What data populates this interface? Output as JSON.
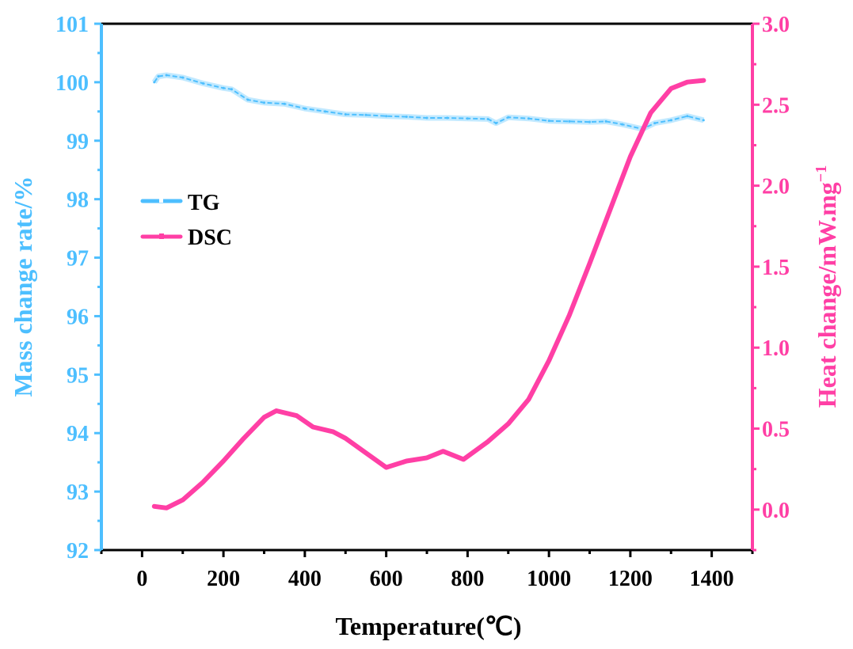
{
  "chart_data": {
    "type": "line",
    "title": "",
    "xlabel": "Temperature(℃)",
    "ylabel": "Mass change rate/%",
    "y2label": "Heat change/mW.mg",
    "y2label_sup": "−1",
    "xlim": [
      -100,
      1500
    ],
    "ylim": [
      92,
      101
    ],
    "y2lim": [
      -0.25,
      3.0
    ],
    "xticks": [
      0,
      200,
      400,
      600,
      800,
      1000,
      1200,
      1400
    ],
    "yticks": [
      92,
      93,
      94,
      95,
      96,
      97,
      98,
      99,
      100,
      101
    ],
    "y2ticks": [
      "0.0",
      "0.5",
      "1.0",
      "1.5",
      "2.0",
      "2.5",
      "3.0"
    ],
    "grid": false,
    "legend_position": "left-upper",
    "colors": {
      "TG": "#4dbfff",
      "DSC": "#ff3fa5",
      "frame": "#000000"
    },
    "series": [
      {
        "name": "TG",
        "axis": "left",
        "x": [
          30,
          40,
          60,
          100,
          150,
          200,
          220,
          260,
          300,
          350,
          400,
          450,
          500,
          550,
          600,
          650,
          700,
          750,
          800,
          850,
          870,
          900,
          950,
          1000,
          1050,
          1100,
          1140,
          1180,
          1230,
          1260,
          1300,
          1340,
          1380
        ],
        "y": [
          100.0,
          100.1,
          100.12,
          100.08,
          99.98,
          99.9,
          99.88,
          99.7,
          99.65,
          99.63,
          99.55,
          99.5,
          99.45,
          99.44,
          99.42,
          99.41,
          99.39,
          99.39,
          99.38,
          99.37,
          99.3,
          99.4,
          99.38,
          99.34,
          99.33,
          99.32,
          99.33,
          99.28,
          99.2,
          99.3,
          99.35,
          99.42,
          99.35
        ]
      },
      {
        "name": "DSC",
        "axis": "right",
        "x": [
          30,
          60,
          100,
          150,
          200,
          250,
          300,
          330,
          380,
          420,
          470,
          500,
          550,
          600,
          650,
          700,
          740,
          790,
          850,
          900,
          950,
          1000,
          1050,
          1100,
          1150,
          1200,
          1250,
          1300,
          1340,
          1380
        ],
        "y": [
          0.02,
          0.01,
          0.06,
          0.17,
          0.3,
          0.44,
          0.57,
          0.61,
          0.58,
          0.51,
          0.48,
          0.44,
          0.35,
          0.26,
          0.3,
          0.32,
          0.36,
          0.31,
          0.42,
          0.53,
          0.68,
          0.92,
          1.2,
          1.52,
          1.85,
          2.18,
          2.45,
          2.6,
          2.64,
          2.65
        ]
      }
    ]
  }
}
